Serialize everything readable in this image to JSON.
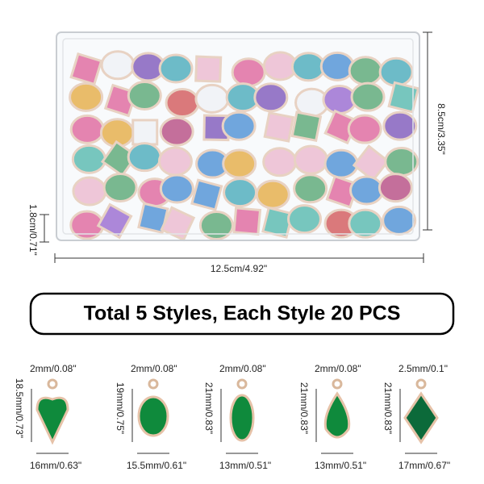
{
  "box": {
    "height": "8.5cm/3.35\"",
    "depth": "1.8cm/0.71\"",
    "width": "12.5cm/4.92\""
  },
  "banner": "Total 5 Styles, Each Style 20 PCS",
  "items": [
    {
      "hole": "2mm/0.08\"",
      "height": "18.5mm/0.73\"",
      "width": "16mm/0.63\""
    },
    {
      "hole": "2mm/0.08\"",
      "height": "19mm/0.75\"",
      "width": "15.5mm/0.61\""
    },
    {
      "hole": "2mm/0.08\"",
      "height": "21mm/0.83\"",
      "width": "13mm/0.51\""
    },
    {
      "hole": "2mm/0.08\"",
      "height": "21mm/0.83\"",
      "width": "13mm/0.51\""
    },
    {
      "hole": "2.5mm/0.1\"",
      "height": "21mm/0.83\"",
      "width": "17mm/0.67\""
    }
  ]
}
